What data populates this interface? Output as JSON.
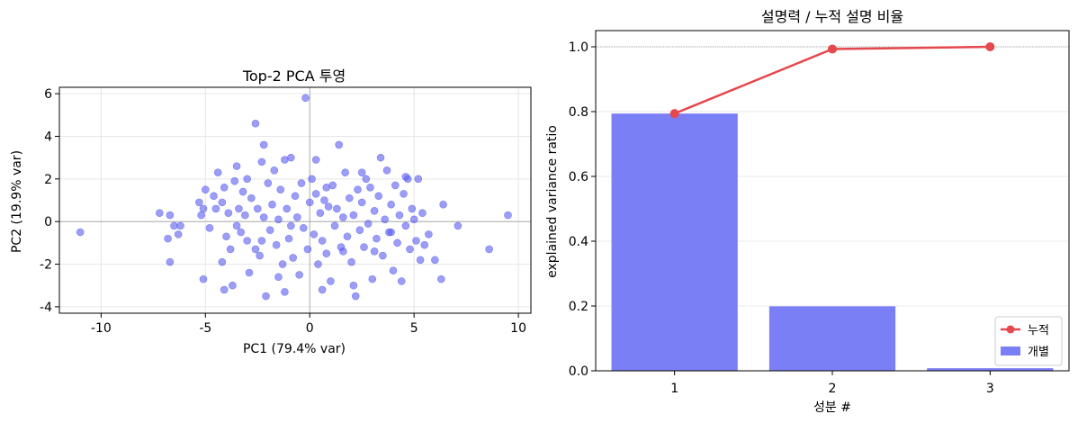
{
  "chart_data": [
    {
      "type": "scatter",
      "title": "Top-2 PCA 투영",
      "xlabel": "PC1 (79.4% var)",
      "ylabel": "PC2 (19.9% var)",
      "xlim": [
        -12,
        10.6
      ],
      "ylim": [
        -4.3,
        6.3
      ],
      "xticks": [
        -10,
        -5,
        0,
        5,
        10
      ],
      "yticks": [
        -4,
        -2,
        0,
        2,
        4,
        6
      ],
      "grid": true,
      "color": "#5a5ef0",
      "points": [
        [
          -11.0,
          -0.5
        ],
        [
          -7.2,
          0.4
        ],
        [
          -6.8,
          -0.8
        ],
        [
          -6.5,
          -0.2
        ],
        [
          -6.3,
          -0.6
        ],
        [
          -6.7,
          -1.9
        ],
        [
          -6.2,
          -0.2
        ],
        [
          -6.7,
          0.3
        ],
        [
          -5.3,
          0.9
        ],
        [
          -5.0,
          1.5
        ],
        [
          -5.2,
          0.3
        ],
        [
          -5.1,
          0.6
        ],
        [
          -4.6,
          1.2
        ],
        [
          -4.8,
          -0.3
        ],
        [
          -4.5,
          0.6
        ],
        [
          -4.4,
          2.3
        ],
        [
          -5.1,
          -2.7
        ],
        [
          -4.2,
          0.9
        ],
        [
          -4.1,
          1.6
        ],
        [
          -4.0,
          -0.7
        ],
        [
          -3.9,
          0.4
        ],
        [
          -4.1,
          -3.2
        ],
        [
          -4.2,
          -1.9
        ],
        [
          -3.8,
          -1.3
        ],
        [
          -3.6,
          1.9
        ],
        [
          -3.5,
          2.6
        ],
        [
          -3.4,
          0.6
        ],
        [
          -3.5,
          -0.2
        ],
        [
          -3.3,
          -0.5
        ],
        [
          -3.2,
          1.4
        ],
        [
          -3.1,
          0.3
        ],
        [
          -3.0,
          -0.9
        ],
        [
          -2.9,
          -2.4
        ],
        [
          -2.8,
          1.1
        ],
        [
          -2.6,
          4.6
        ],
        [
          -2.5,
          0.6
        ],
        [
          -2.4,
          -1.6
        ],
        [
          -2.3,
          2.8
        ],
        [
          -2.2,
          0.2
        ],
        [
          -2.1,
          -3.5
        ],
        [
          -2.0,
          1.8
        ],
        [
          -2.2,
          3.6
        ],
        [
          -1.9,
          -0.4
        ],
        [
          -1.8,
          0.8
        ],
        [
          -1.7,
          2.4
        ],
        [
          -1.6,
          -1.1
        ],
        [
          -1.5,
          0.1
        ],
        [
          -1.4,
          1.5
        ],
        [
          -1.3,
          -2.0
        ],
        [
          -1.2,
          2.9
        ],
        [
          -1.1,
          0.6
        ],
        [
          -1.0,
          -0.8
        ],
        [
          -0.9,
          3.0
        ],
        [
          -0.8,
          -1.7
        ],
        [
          -0.7,
          1.2
        ],
        [
          -0.6,
          0.2
        ],
        [
          -0.5,
          -2.5
        ],
        [
          -0.4,
          1.8
        ],
        [
          -0.3,
          -0.3
        ],
        [
          -0.2,
          5.8
        ],
        [
          -0.1,
          -1.3
        ],
        [
          0.0,
          0.9
        ],
        [
          0.1,
          2.0
        ],
        [
          0.2,
          -0.6
        ],
        [
          0.3,
          1.3
        ],
        [
          0.4,
          -2.0
        ],
        [
          0.5,
          0.4
        ],
        [
          0.6,
          -0.9
        ],
        [
          0.7,
          1.0
        ],
        [
          0.8,
          -1.5
        ],
        [
          0.9,
          0.7
        ],
        [
          1.0,
          -2.8
        ],
        [
          1.1,
          1.7
        ],
        [
          1.2,
          -0.2
        ],
        [
          1.3,
          0.6
        ],
        [
          1.4,
          3.6
        ],
        [
          1.5,
          -1.2
        ],
        [
          1.6,
          0.2
        ],
        [
          1.7,
          2.3
        ],
        [
          1.8,
          -0.7
        ],
        [
          1.9,
          1.1
        ],
        [
          2.0,
          -1.9
        ],
        [
          2.1,
          0.3
        ],
        [
          2.2,
          -3.5
        ],
        [
          2.3,
          1.5
        ],
        [
          2.4,
          -0.4
        ],
        [
          2.5,
          0.9
        ],
        [
          2.6,
          -1.2
        ],
        [
          2.7,
          2.0
        ],
        [
          2.8,
          -0.1
        ],
        [
          2.9,
          1.6
        ],
        [
          3.0,
          -2.7
        ],
        [
          3.1,
          0.5
        ],
        [
          3.2,
          -0.8
        ],
        [
          3.3,
          1.2
        ],
        [
          3.4,
          3.0
        ],
        [
          3.5,
          -1.6
        ],
        [
          3.6,
          0.1
        ],
        [
          3.7,
          2.4
        ],
        [
          3.8,
          -0.5
        ],
        [
          3.9,
          0.8
        ],
        [
          4.0,
          -2.3
        ],
        [
          4.1,
          1.7
        ],
        [
          4.2,
          -1.0
        ],
        [
          4.3,
          0.3
        ],
        [
          4.4,
          -2.8
        ],
        [
          4.5,
          1.3
        ],
        [
          4.6,
          -0.2
        ],
        [
          4.7,
          2.0
        ],
        [
          4.8,
          -1.3
        ],
        [
          4.9,
          0.6
        ],
        [
          5.0,
          0.1
        ],
        [
          5.1,
          -0.9
        ],
        [
          5.2,
          2.0
        ],
        [
          5.3,
          -1.8
        ],
        [
          5.4,
          0.4
        ],
        [
          5.5,
          -1.1
        ],
        [
          5.7,
          -0.6
        ],
        [
          6.0,
          -1.8
        ],
        [
          6.3,
          -2.7
        ],
        [
          6.4,
          0.8
        ],
        [
          7.1,
          -0.2
        ],
        [
          8.6,
          -1.3
        ],
        [
          9.5,
          0.3
        ],
        [
          -3.0,
          2.0
        ],
        [
          -2.6,
          -1.3
        ],
        [
          -1.5,
          -2.6
        ],
        [
          -0.9,
          -0.2
        ],
        [
          0.3,
          2.9
        ],
        [
          0.8,
          1.6
        ],
        [
          1.6,
          -1.4
        ],
        [
          2.5,
          2.3
        ],
        [
          3.1,
          -1.4
        ],
        [
          3.9,
          -0.5
        ],
        [
          4.6,
          2.1
        ],
        [
          -1.2,
          -3.3
        ],
        [
          0.6,
          -3.2
        ],
        [
          2.1,
          -3.0
        ],
        [
          -3.7,
          -3.0
        ],
        [
          -2.3,
          -0.9
        ]
      ]
    },
    {
      "type": "bar",
      "title": "설명력 / 누적 설명 비율",
      "xlabel": "성분 #",
      "ylabel": "explained variance ratio",
      "categories": [
        "1",
        "2",
        "3"
      ],
      "ylim": [
        0,
        1.05
      ],
      "yticks": [
        "0.0",
        "0.2",
        "0.4",
        "0.6",
        "0.8",
        "1.0"
      ],
      "grid": true,
      "reference_line": 1.0,
      "legend_position": "bottom-right",
      "series": [
        {
          "name": "개별",
          "type": "bar",
          "values": [
            0.794,
            0.199,
            0.008
          ],
          "color": "#7b7ff5"
        },
        {
          "name": "누적",
          "type": "line",
          "values": [
            0.794,
            0.993,
            1.0
          ],
          "color": "#e5484d"
        }
      ]
    }
  ]
}
